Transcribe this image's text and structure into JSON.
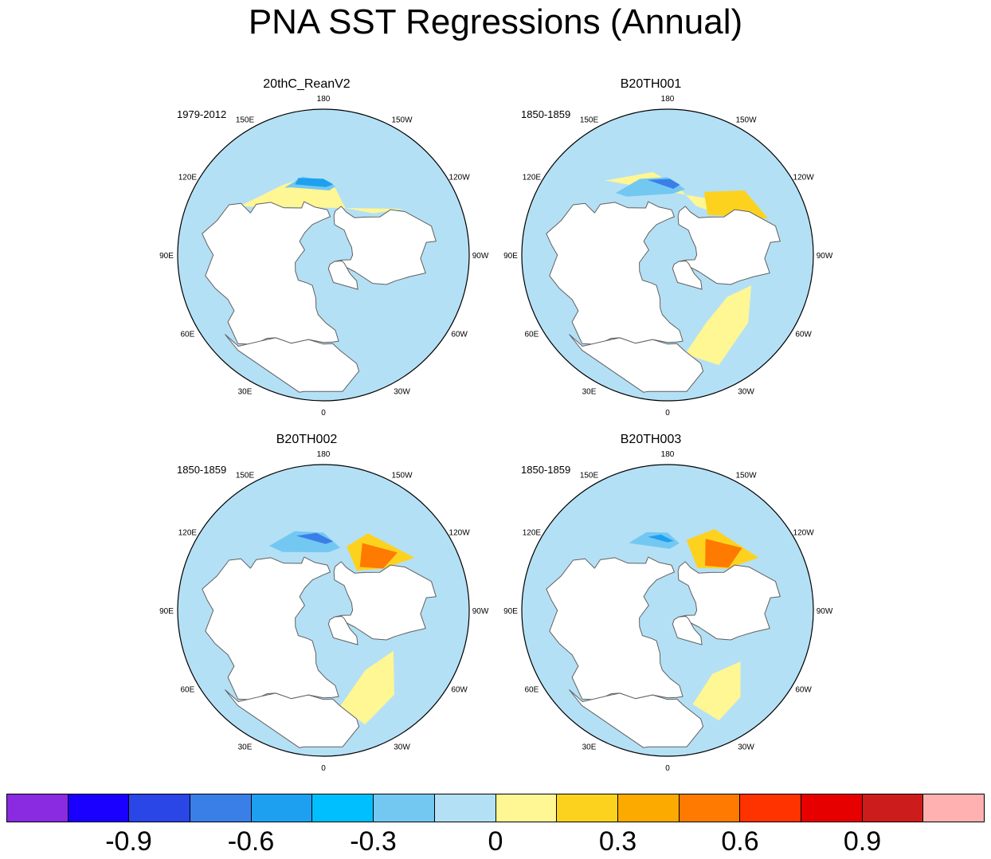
{
  "title": "PNA SST Regressions (Annual)",
  "panels": [
    {
      "title": "20thC_ReanV2",
      "period": "1979-2012",
      "fields": [
        {
          "color": "#fff694",
          "points": [
            [
              -155,
              58
            ],
            [
              -170,
              48
            ],
            [
              175,
              40
            ],
            [
              150,
              40
            ],
            [
              120,
              30
            ],
            [
              -120,
              33
            ],
            [
              -130,
              50
            ]
          ]
        },
        {
          "color": "#b4e0f5",
          "points": [
            [
              -160,
              50
            ],
            [
              175,
              38
            ],
            [
              150,
              36
            ],
            [
              125,
              24
            ],
            [
              130,
              18
            ],
            [
              -140,
              32
            ]
          ]
        },
        {
          "color": "#73c8f2",
          "points": [
            [
              -170,
              47
            ],
            [
              -180,
              44
            ],
            [
              165,
              40
            ],
            [
              150,
              42
            ],
            [
              155,
              44
            ],
            [
              -175,
              50
            ]
          ]
        },
        {
          "color": "#1ea0f0",
          "points": [
            [
              -172,
              46
            ],
            [
              -180,
              43
            ],
            [
              162,
              40
            ],
            [
              158,
              43
            ],
            [
              -178,
              48
            ]
          ]
        },
        {
          "color": "#b4e0f5",
          "points": [
            [
              -80,
              30
            ],
            [
              -60,
              18
            ],
            [
              -30,
              10
            ],
            [
              -10,
              20
            ],
            [
              -15,
              36
            ],
            [
              -40,
              45
            ],
            [
              -60,
              45
            ]
          ]
        }
      ]
    },
    {
      "title": "B20TH001",
      "period": "1850-1859",
      "fields": [
        {
          "color": "#fff694",
          "points": [
            [
              -150,
              55
            ],
            [
              -170,
              48
            ],
            [
              170,
              38
            ],
            [
              140,
              30
            ],
            [
              -120,
              30
            ],
            [
              -130,
              50
            ]
          ]
        },
        {
          "color": "#fdd21f",
          "points": [
            [
              -135,
              55
            ],
            [
              -150,
              45
            ],
            [
              -130,
              28
            ],
            [
              -110,
              24
            ],
            [
              -118,
              40
            ]
          ]
        },
        {
          "color": "#73c8f2",
          "points": [
            [
              -165,
              48
            ],
            [
              -180,
              42
            ],
            [
              160,
              40
            ],
            [
              140,
              40
            ],
            [
              145,
              46
            ],
            [
              -175,
              52
            ]
          ]
        },
        {
          "color": "#3a7fe8",
          "points": [
            [
              -170,
              46
            ],
            [
              -178,
              43
            ],
            [
              165,
              42
            ],
            [
              -175,
              49
            ]
          ]
        },
        {
          "color": "#fff694",
          "points": [
            [
              -70,
              35
            ],
            [
              -50,
              25
            ],
            [
              -25,
              15
            ],
            [
              -10,
              28
            ],
            [
              -30,
              42
            ],
            [
              -55,
              45
            ]
          ]
        }
      ]
    },
    {
      "title": "B20TH002",
      "period": "1850-1859",
      "fields": [
        {
          "color": "#fdd21f",
          "points": [
            [
              -140,
              58
            ],
            [
              -160,
              48
            ],
            [
              -150,
              35
            ],
            [
              -120,
              25
            ],
            [
              -125,
              45
            ]
          ]
        },
        {
          "color": "#ff7a00",
          "points": [
            [
              -140,
              55
            ],
            [
              -150,
              42
            ],
            [
              -128,
              32
            ],
            [
              -125,
              45
            ]
          ]
        },
        {
          "color": "#73c8f2",
          "points": [
            [
              -165,
              50
            ],
            [
              -180,
              42
            ],
            [
              160,
              38
            ],
            [
              140,
              38
            ],
            [
              145,
              46
            ],
            [
              -175,
              54
            ]
          ]
        },
        {
          "color": "#3a7fe8",
          "points": [
            [
              -172,
              47
            ],
            [
              175,
              42
            ],
            [
              160,
              41
            ],
            [
              -178,
              49
            ]
          ]
        },
        {
          "color": "#fff694",
          "points": [
            [
              -60,
              40
            ],
            [
              -40,
              22
            ],
            [
              -20,
              15
            ],
            [
              -10,
              30
            ],
            [
              -35,
              45
            ]
          ]
        }
      ]
    },
    {
      "title": "B20TH003",
      "period": "1850-1859",
      "fields": [
        {
          "color": "#fdd21f",
          "points": [
            [
              -145,
              58
            ],
            [
              -165,
              45
            ],
            [
              -150,
              32
            ],
            [
              -120,
              25
            ],
            [
              -125,
              45
            ]
          ]
        },
        {
          "color": "#ff7a00",
          "points": [
            [
              -140,
              54
            ],
            [
              -152,
              40
            ],
            [
              -130,
              30
            ],
            [
              -125,
              44
            ]
          ]
        },
        {
          "color": "#73c8f2",
          "points": [
            [
              -170,
              48
            ],
            [
              -180,
              42
            ],
            [
              165,
              40
            ],
            [
              150,
              42
            ],
            [
              -178,
              52
            ]
          ]
        },
        {
          "color": "#1ea0f0",
          "points": [
            [
              -175,
              47
            ],
            [
              175,
              43
            ],
            [
              165,
              43
            ],
            [
              -180,
              48
            ]
          ]
        },
        {
          "color": "#fff694",
          "points": [
            [
              -55,
              35
            ],
            [
              -40,
              20
            ],
            [
              -25,
              15
            ],
            [
              -15,
              30
            ],
            [
              -35,
              42
            ]
          ]
        }
      ]
    }
  ],
  "map": {
    "lon_labels": [
      {
        "text": "180",
        "lon": 180
      },
      {
        "text": "150E",
        "lon": 150
      },
      {
        "text": "120E",
        "lon": 120
      },
      {
        "text": "90E",
        "lon": 90
      },
      {
        "text": "60E",
        "lon": 60
      },
      {
        "text": "30E",
        "lon": 30
      },
      {
        "text": "0",
        "lon": 0
      },
      {
        "text": "30W",
        "lon": -30
      },
      {
        "text": "60W",
        "lon": -60
      },
      {
        "text": "90W",
        "lon": -90
      },
      {
        "text": "120W",
        "lon": -120
      },
      {
        "text": "150W",
        "lon": -150
      }
    ],
    "ocean_color": "#b4e0f5",
    "land_color": "#ffffff",
    "coast_color": "#606060",
    "land_polygons": [
      {
        "name": "north-america",
        "points": [
          [
            -165,
            65
          ],
          [
            -160,
            70
          ],
          [
            -140,
            70
          ],
          [
            -125,
            72
          ],
          [
            -105,
            72
          ],
          [
            -90,
            72
          ],
          [
            -80,
            73
          ],
          [
            -75,
            78
          ],
          [
            -60,
            82
          ],
          [
            -62,
            68
          ],
          [
            -60,
            55
          ],
          [
            -65,
            47
          ],
          [
            -70,
            43
          ],
          [
            -76,
            35
          ],
          [
            -80,
            26
          ],
          [
            -88,
            30
          ],
          [
            -97,
            26
          ],
          [
            -97,
            20
          ],
          [
            -105,
            21
          ],
          [
            -118,
            33
          ],
          [
            -124,
            40
          ],
          [
            -124,
            48
          ],
          [
            -132,
            55
          ],
          [
            -140,
            60
          ],
          [
            -152,
            60
          ],
          [
            -160,
            58
          ],
          [
            -165,
            62
          ]
        ]
      },
      {
        "name": "greenland",
        "points": [
          [
            -72,
            78
          ],
          [
            -60,
            82
          ],
          [
            -35,
            83
          ],
          [
            -20,
            81
          ],
          [
            -20,
            72
          ],
          [
            -40,
            64
          ],
          [
            -45,
            60
          ],
          [
            -52,
            64
          ],
          [
            -55,
            70
          ],
          [
            -68,
            76
          ]
        ]
      },
      {
        "name": "eurasia",
        "points": [
          [
            -10,
            36
          ],
          [
            -9,
            43
          ],
          [
            -2,
            48
          ],
          [
            5,
            53
          ],
          [
            8,
            57
          ],
          [
            10,
            63
          ],
          [
            20,
            70
          ],
          [
            30,
            70
          ],
          [
            45,
            68
          ],
          [
            60,
            70
          ],
          [
            75,
            72
          ],
          [
            90,
            76
          ],
          [
            105,
            78
          ],
          [
            120,
            73
          ],
          [
            140,
            72
          ],
          [
            160,
            70
          ],
          [
            180,
            68
          ],
          [
            -170,
            66
          ],
          [
            -175,
            62
          ],
          [
            170,
            60
          ],
          [
            160,
            55
          ],
          [
            155,
            58
          ],
          [
            140,
            52
          ],
          [
            135,
            44
          ],
          [
            127,
            38
          ],
          [
            120,
            38
          ],
          [
            122,
            30
          ],
          [
            118,
            24
          ],
          [
            108,
            21
          ],
          [
            100,
            14
          ],
          [
            95,
            18
          ],
          [
            90,
            22
          ],
          [
            80,
            16
          ],
          [
            73,
            20
          ],
          [
            65,
            25
          ],
          [
            58,
            25
          ],
          [
            55,
            18
          ],
          [
            44,
            14
          ],
          [
            38,
            20
          ],
          [
            34,
            28
          ],
          [
            30,
            31
          ],
          [
            20,
            32
          ],
          [
            10,
            37
          ],
          [
            0,
            36
          ],
          [
            -6,
            36
          ]
        ]
      },
      {
        "name": "africa",
        "points": [
          [
            -17,
            20
          ],
          [
            -17,
            15
          ],
          [
            -8,
            5
          ],
          [
            8,
            5
          ],
          [
            10,
            4
          ],
          [
            42,
            11
          ],
          [
            51,
            12
          ],
          [
            43,
            13
          ],
          [
            33,
            28
          ],
          [
            30,
            31
          ],
          [
            20,
            32
          ],
          [
            10,
            37
          ],
          [
            0,
            35
          ],
          [
            -6,
            35
          ],
          [
            -10,
            30
          ]
        ]
      }
    ]
  },
  "colorbar": {
    "colors": [
      "#8a2be2",
      "#1a00ff",
      "#2a46e6",
      "#3a7fe8",
      "#1ea0f0",
      "#00bfff",
      "#73c8f2",
      "#b4e0f5",
      "#fff694",
      "#fdd21f",
      "#fcaa00",
      "#ff7a00",
      "#ff3300",
      "#e60000",
      "#cd1c1c",
      "#ffb1b1"
    ],
    "labels": [
      {
        "text": "-0.9",
        "pos": 2
      },
      {
        "text": "-0.6",
        "pos": 4
      },
      {
        "text": "-0.3",
        "pos": 6
      },
      {
        "text": "0",
        "pos": 8
      },
      {
        "text": "0.3",
        "pos": 10
      },
      {
        "text": "0.6",
        "pos": 12
      },
      {
        "text": "0.9",
        "pos": 14
      }
    ]
  }
}
